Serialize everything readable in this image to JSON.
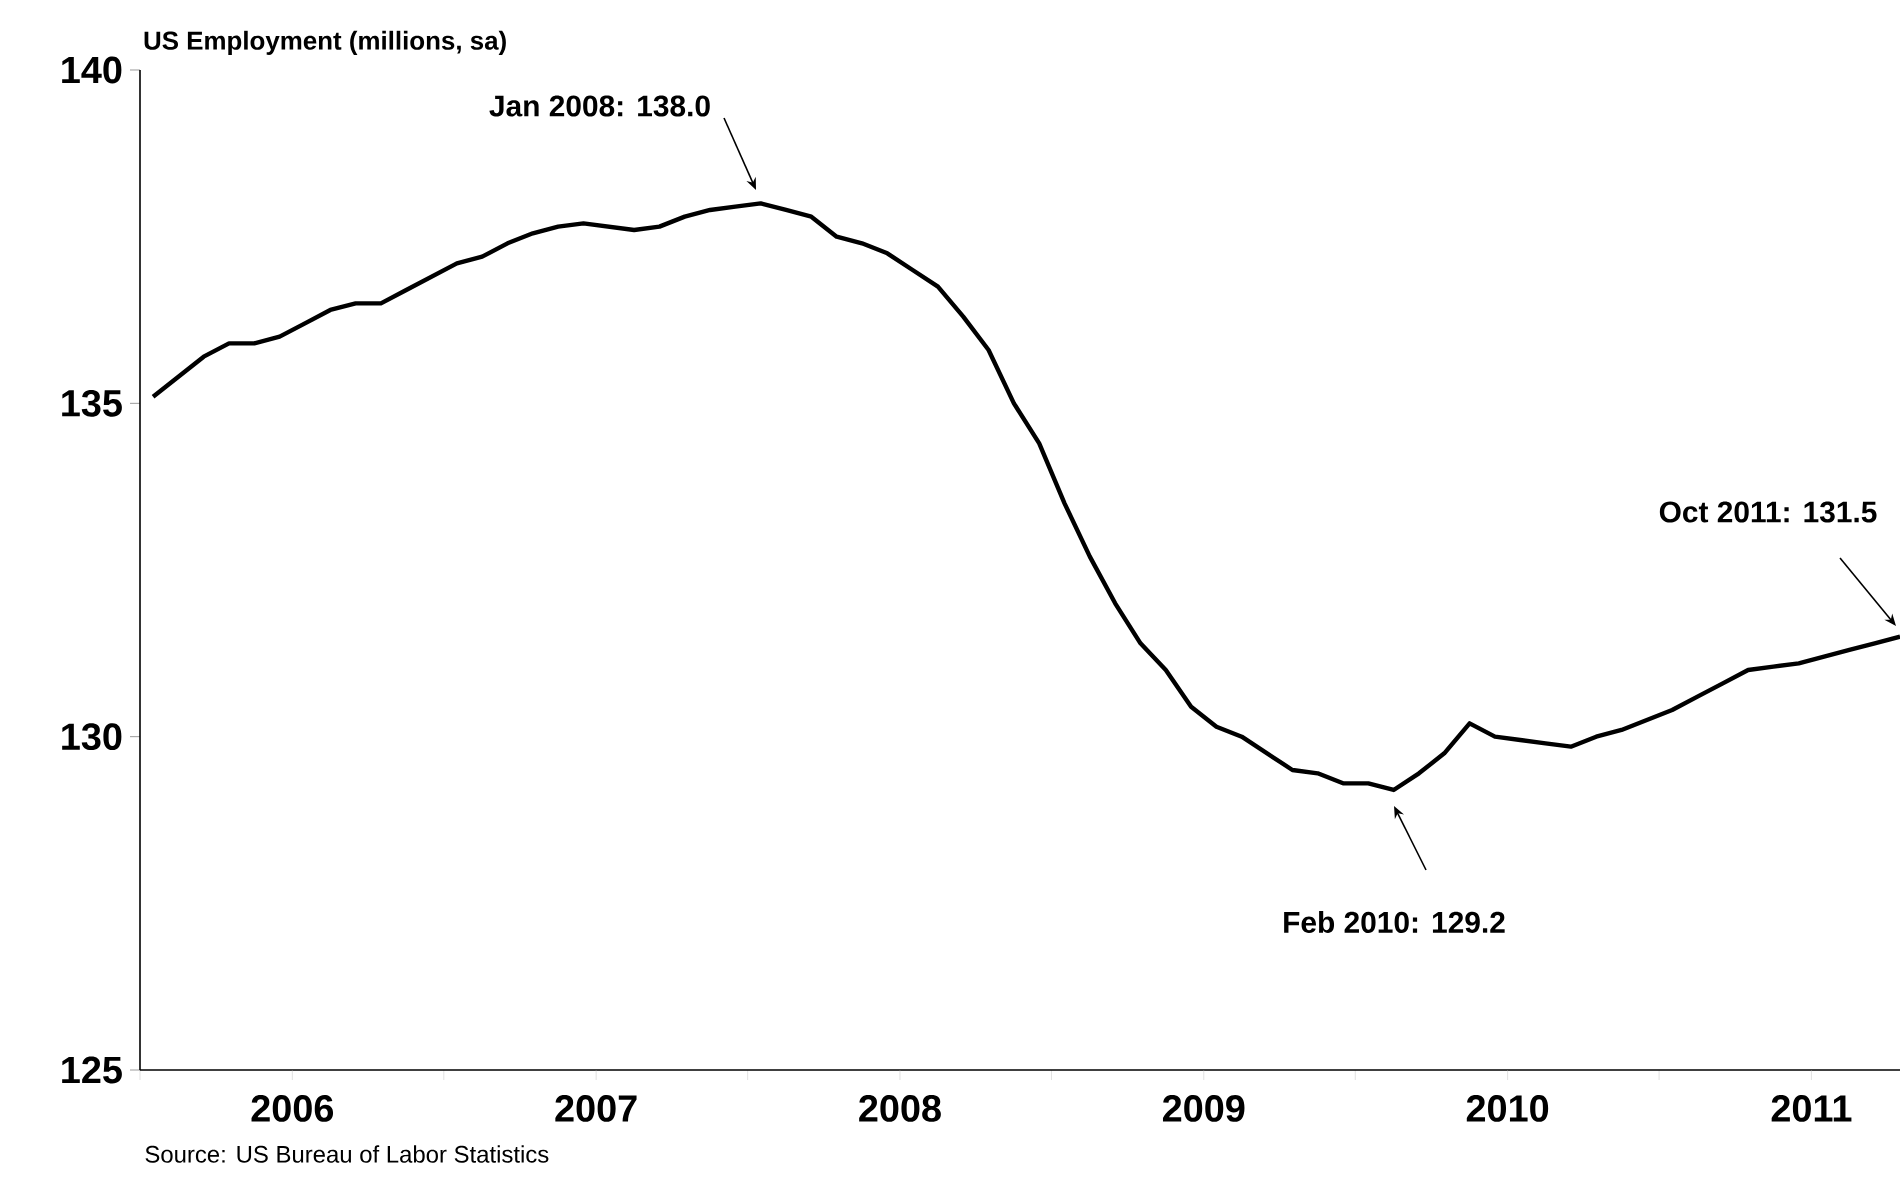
{
  "chart_data": {
    "type": "line",
    "ylabel": "US Employment (millions, sa)",
    "x": [
      "2006-01",
      "2006-02",
      "2006-03",
      "2006-04",
      "2006-05",
      "2006-06",
      "2006-07",
      "2006-08",
      "2006-09",
      "2006-10",
      "2006-11",
      "2006-12",
      "2007-01",
      "2007-02",
      "2007-03",
      "2007-04",
      "2007-05",
      "2007-06",
      "2007-07",
      "2007-08",
      "2007-09",
      "2007-10",
      "2007-11",
      "2007-12",
      "2008-01",
      "2008-02",
      "2008-03",
      "2008-04",
      "2008-05",
      "2008-06",
      "2008-07",
      "2008-08",
      "2008-09",
      "2008-10",
      "2008-11",
      "2008-12",
      "2009-01",
      "2009-02",
      "2009-03",
      "2009-04",
      "2009-05",
      "2009-06",
      "2009-07",
      "2009-08",
      "2009-09",
      "2009-10",
      "2009-11",
      "2009-12",
      "2010-01",
      "2010-02",
      "2010-03",
      "2010-04",
      "2010-05",
      "2010-06",
      "2010-07",
      "2010-08",
      "2010-09",
      "2010-10",
      "2010-11",
      "2010-12",
      "2011-01",
      "2011-02",
      "2011-03",
      "2011-04",
      "2011-05",
      "2011-06",
      "2011-07",
      "2011-08",
      "2011-09",
      "2011-10"
    ],
    "series": [
      {
        "color": "#000000",
        "values": [
          135.1,
          135.4,
          135.7,
          135.9,
          135.9,
          136.0,
          136.2,
          136.4,
          136.5,
          136.5,
          136.7,
          136.9,
          137.1,
          137.2,
          137.4,
          137.55,
          137.65,
          137.7,
          137.65,
          137.6,
          137.65,
          137.8,
          137.9,
          137.95,
          138.0,
          137.9,
          137.8,
          137.5,
          137.4,
          137.25,
          137.0,
          136.75,
          136.3,
          135.8,
          135.0,
          134.4,
          133.5,
          132.7,
          132.0,
          131.4,
          131.0,
          130.45,
          130.15,
          130.0,
          129.75,
          129.5,
          129.45,
          129.3,
          129.3,
          129.2,
          129.45,
          129.75,
          130.2,
          130.0,
          129.95,
          129.9,
          129.85,
          130.0,
          130.1,
          130.25,
          130.4,
          130.6,
          130.8,
          131.0,
          131.05,
          131.1,
          131.2,
          131.3,
          131.4,
          131.5
        ]
      }
    ],
    "xlim": [
      "2005-12-16",
      "2011-10-01"
    ],
    "xticks": [
      {
        "value": "2005-12-16",
        "label": null
      },
      {
        "value": "2006-06-16",
        "label": "2006"
      },
      {
        "value": "2006-12-16",
        "label": null
      },
      {
        "value": "2007-06-16",
        "label": "2007"
      },
      {
        "value": "2007-12-16",
        "label": null
      },
      {
        "value": "2008-06-16",
        "label": "2008"
      },
      {
        "value": "2008-12-16",
        "label": null
      },
      {
        "value": "2009-06-16",
        "label": "2009"
      },
      {
        "value": "2009-12-16",
        "label": null
      },
      {
        "value": "2010-06-16",
        "label": "2010"
      },
      {
        "value": "2010-12-16",
        "label": null
      },
      {
        "value": "2011-06-16",
        "label": "2011"
      }
    ],
    "ylim": [
      125,
      140
    ],
    "yticks": [
      125,
      130,
      135,
      140
    ],
    "annotations": [
      "Jan 2008: 138.0",
      "Feb 2010: 129.2",
      "Oct 2011: 131.5",
      "Source: US Bureau of Labor Statistics"
    ]
  }
}
